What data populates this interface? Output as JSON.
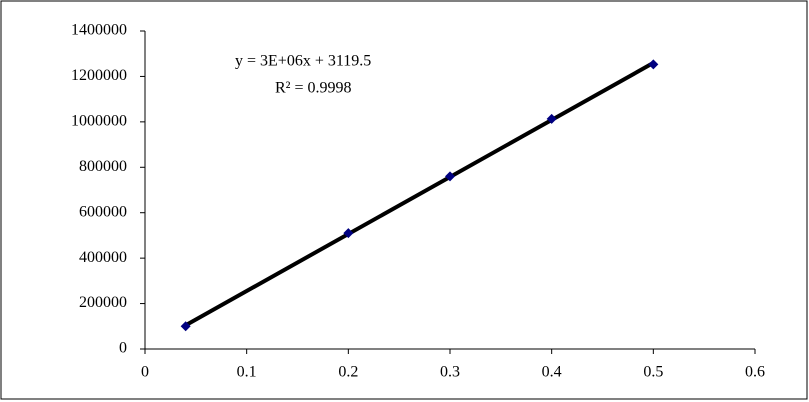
{
  "chart_data": {
    "type": "scatter",
    "annotations": [
      "y = 3E+06x + 3119.5",
      "R² = 0.9998"
    ],
    "x": [
      0.04,
      0.2,
      0.3,
      0.4,
      0.5
    ],
    "series": [
      {
        "color": "#000080",
        "values": [
          100000,
          510000,
          760000,
          1013000,
          1253000
        ]
      }
    ],
    "trendline": true,
    "trendline_color": "#000000",
    "xlim": [
      0,
      0.6
    ],
    "xticks": [
      0,
      0.1,
      0.2,
      0.3,
      0.4,
      0.5,
      0.6
    ],
    "ylim": [
      0,
      1400000
    ],
    "yticks": [
      0,
      200000,
      400000,
      600000,
      800000,
      1000000,
      1200000,
      1400000
    ],
    "grid": false
  }
}
